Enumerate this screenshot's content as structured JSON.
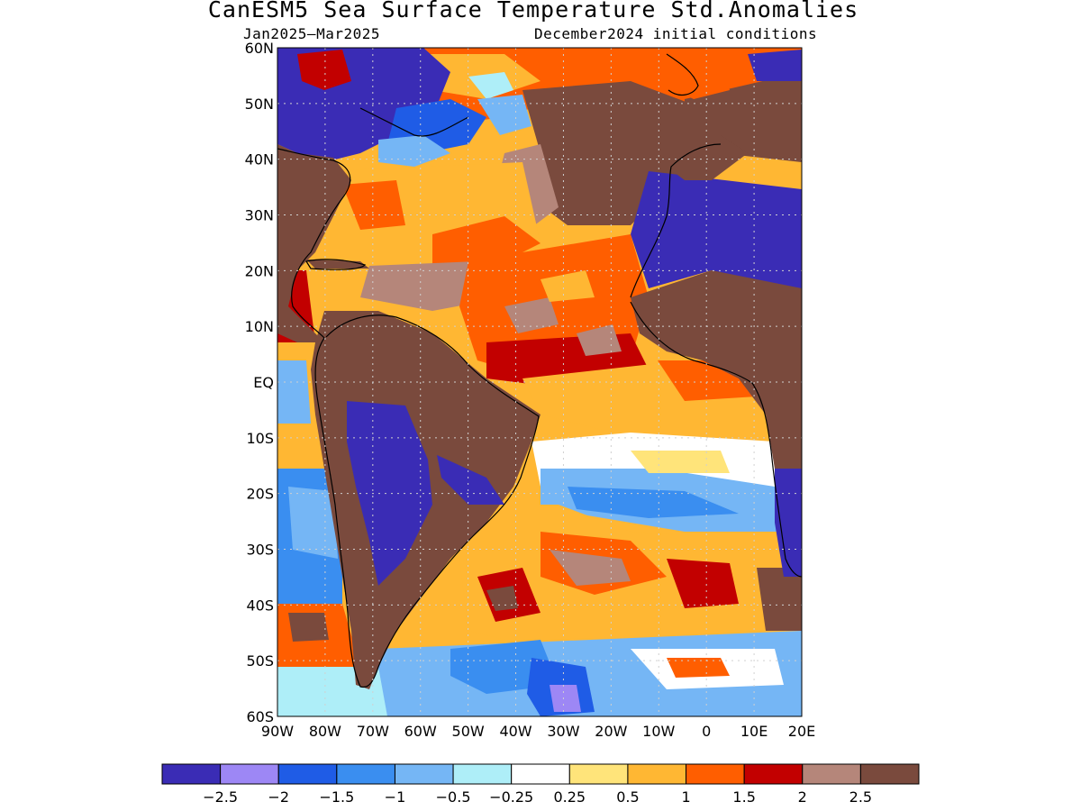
{
  "title": "CanESM5 Sea Surface Temperature Std.Anomalies",
  "subtitle_left": "Jan2025–Mar2025",
  "subtitle_right": "December2024 initial conditions",
  "chart_data": {
    "type": "heatmap",
    "title": "CanESM5 Sea Surface Temperature Std.Anomalies",
    "period": "Jan2025–Mar2025",
    "initial_conditions": "December2024 initial conditions",
    "lon_range": [
      -90,
      20
    ],
    "lat_range": [
      -60,
      60
    ],
    "x_ticks": [
      "90W",
      "80W",
      "70W",
      "60W",
      "50W",
      "40W",
      "30W",
      "20W",
      "10W",
      "0",
      "10E",
      "20E"
    ],
    "y_ticks": [
      "60S",
      "50S",
      "40S",
      "30S",
      "20S",
      "10S",
      "EQ",
      "10N",
      "20N",
      "30N",
      "40N",
      "50N",
      "60N"
    ],
    "grid": true,
    "colorbar": {
      "colors": [
        "#3a2cb5",
        "#9d87f5",
        "#1f5ce6",
        "#3a8ef0",
        "#75b6f5",
        "#aeeef8",
        "#ffffff",
        "#ffe47a",
        "#ffb733",
        "#ff5e00",
        "#c20000",
        "#b5867a",
        "#7a4a3d"
      ],
      "labels": [
        "−2.5",
        "−2",
        "−1.5",
        "−1",
        "−0.5",
        "−0.25",
        "0.25",
        "0.5",
        "1",
        "1.5",
        "2",
        "2.5"
      ],
      "boundaries": [
        -2.5,
        -2,
        -1.5,
        -1,
        -0.5,
        -0.25,
        0.25,
        0.5,
        1,
        1.5,
        2,
        2.5
      ]
    }
  }
}
